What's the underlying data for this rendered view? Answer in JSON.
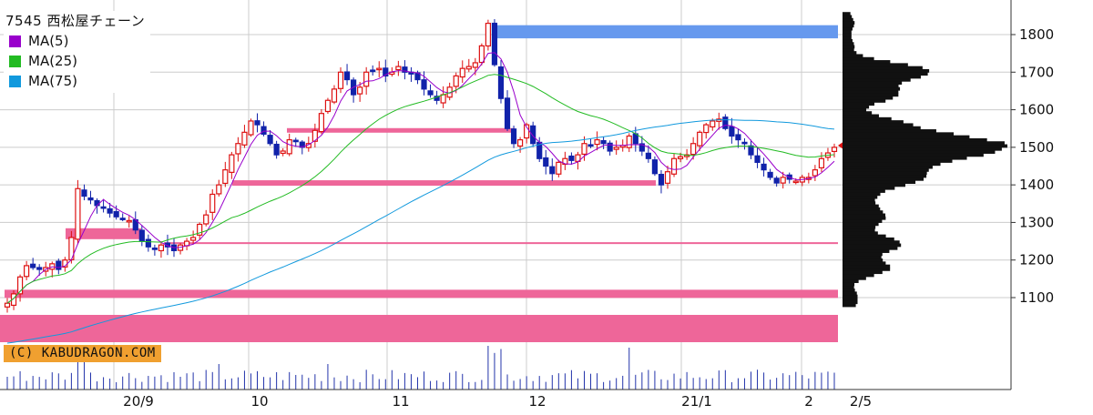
{
  "header": {
    "title": "7545 西松屋チェーン"
  },
  "legend": [
    {
      "label": "MA(5)",
      "color": "#9900cc"
    },
    {
      "label": "MA(25)",
      "color": "#22bb22"
    },
    {
      "label": "MA(75)",
      "color": "#1199dd"
    }
  ],
  "copyright": "(C) KABUDRAGON.COM",
  "colors": {
    "up_candle": "#dd1111",
    "down_candle": "#1122aa",
    "resistance_band": "#6699ee",
    "support_band": "#ee6699",
    "volume_profile": "#111111",
    "current_price_marker": "#dd1111"
  },
  "chart_data": {
    "type": "candlestick",
    "y_axis": {
      "ticks": [
        "1800",
        "1700",
        "1600",
        "1500",
        "1400",
        "1300",
        "1200",
        "1100"
      ],
      "range": [
        1000,
        1860
      ],
      "position": "right"
    },
    "x_axis": {
      "labels": [
        "20/9",
        "10",
        "11",
        "12",
        "21/1",
        "2",
        "2/5"
      ]
    },
    "grid": true,
    "candles_per_period": "daily",
    "closes": [
      1085,
      1110,
      1155,
      1185,
      1180,
      1175,
      1180,
      1190,
      1175,
      1200,
      1260,
      1390,
      1370,
      1360,
      1345,
      1340,
      1325,
      1315,
      1310,
      1305,
      1280,
      1250,
      1235,
      1230,
      1240,
      1235,
      1225,
      1240,
      1250,
      1260,
      1295,
      1320,
      1375,
      1400,
      1440,
      1480,
      1510,
      1540,
      1570,
      1560,
      1535,
      1510,
      1480,
      1490,
      1520,
      1515,
      1500,
      1510,
      1545,
      1590,
      1625,
      1655,
      1700,
      1680,
      1640,
      1660,
      1700,
      1705,
      1710,
      1690,
      1700,
      1715,
      1700,
      1695,
      1680,
      1655,
      1640,
      1625,
      1640,
      1660,
      1690,
      1710,
      1715,
      1725,
      1770,
      1830,
      1720,
      1630,
      1550,
      1510,
      1520,
      1560,
      1510,
      1470,
      1450,
      1430,
      1460,
      1470,
      1465,
      1480,
      1510,
      1505,
      1520,
      1510,
      1490,
      1500,
      1505,
      1530,
      1510,
      1490,
      1470,
      1430,
      1400,
      1435,
      1470,
      1475,
      1480,
      1510,
      1540,
      1560,
      1570,
      1575,
      1550,
      1530,
      1520,
      1510,
      1480,
      1460,
      1440,
      1420,
      1405,
      1420,
      1415,
      1410,
      1420,
      1420,
      1440,
      1470,
      1485,
      1500
    ],
    "bands": [
      {
        "kind": "resistance",
        "from": 1790,
        "to": 1825
      },
      {
        "kind": "support",
        "level": 1545
      },
      {
        "kind": "support",
        "level": 1405
      },
      {
        "kind": "support",
        "level": 1270
      },
      {
        "kind": "support",
        "level": 1245
      },
      {
        "kind": "support",
        "level": 1110
      },
      {
        "kind": "support",
        "from": 1000,
        "to": 1065
      }
    ],
    "volume_profile": "price histogram on right side, peak near 1500",
    "volume_bars": "daily volume bars at bottom, spikes near 20/9 and late 11"
  }
}
